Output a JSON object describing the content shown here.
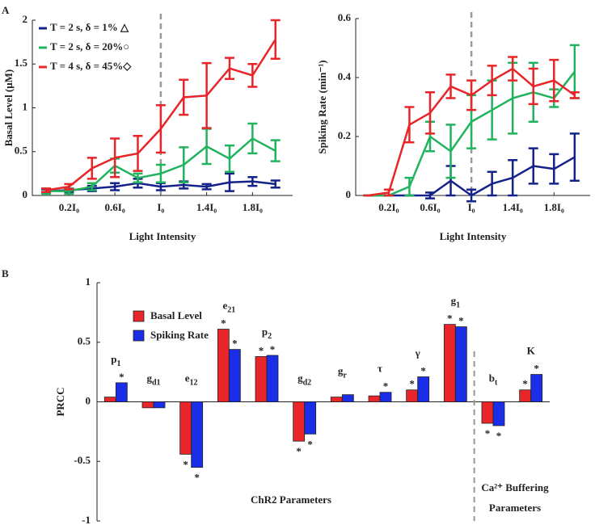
{
  "chart_data": [
    {
      "type": "line",
      "label": "A",
      "x_label": "Light Intensity",
      "y_label": "Basal Level (μM)",
      "x": [
        0,
        0.2,
        0.4,
        0.6,
        0.8,
        1.0,
        1.2,
        1.4,
        1.6,
        1.8,
        2.0
      ],
      "xlim": [
        -0.12,
        2.15
      ],
      "ylim": [
        0,
        2
      ],
      "xticks": [
        {
          "value": 0.2,
          "label": "0.2I₀"
        },
        {
          "value": 0.6,
          "label": "0.6I₀"
        },
        {
          "value": 1,
          "label": "I₀"
        },
        {
          "value": 1.4,
          "label": "1.4I₀"
        },
        {
          "value": 1.8,
          "label": "1.8I₀"
        }
      ],
      "yticks": [
        0,
        0.5,
        1,
        1.5,
        2
      ],
      "reference_x": 1,
      "series": [
        {
          "name": "T = 2 s, δ = 1% △",
          "color": "#14238a",
          "values": [
            0.05,
            0.06,
            0.08,
            0.1,
            0.14,
            0.1,
            0.12,
            0.1,
            0.15,
            0.16,
            0.13
          ],
          "errors": [
            0.02,
            0.02,
            0.03,
            0.04,
            0.05,
            0.04,
            0.04,
            0.03,
            0.1,
            0.05,
            0.04
          ]
        },
        {
          "name": "T = 2 s, δ = 20%○",
          "color": "#22b35e",
          "values": [
            0.05,
            0.05,
            0.1,
            0.34,
            0.2,
            0.25,
            0.35,
            0.56,
            0.42,
            0.65,
            0.51
          ],
          "errors": [
            0.03,
            0.03,
            0.04,
            0.08,
            0.05,
            0.1,
            0.2,
            0.2,
            0.15,
            0.17,
            0.12
          ]
        },
        {
          "name": "T = 4 s, δ = 45%◇",
          "color": "#e8262a",
          "values": [
            0.06,
            0.1,
            0.31,
            0.43,
            0.48,
            0.76,
            1.12,
            1.14,
            1.45,
            1.37,
            1.78
          ],
          "errors": [
            0.02,
            0.03,
            0.12,
            0.22,
            0.2,
            0.27,
            0.2,
            0.37,
            0.12,
            0.13,
            0.22
          ]
        }
      ]
    },
    {
      "type": "line",
      "x_label": "Light Intensity",
      "y_label": "Spiking Rate (min⁻¹)",
      "x": [
        0,
        0.2,
        0.4,
        0.6,
        0.8,
        1.0,
        1.2,
        1.4,
        1.6,
        1.8,
        2.0
      ],
      "xlim": [
        -0.12,
        2.15
      ],
      "ylim": [
        0,
        0.6
      ],
      "xticks": [
        {
          "value": 0.2,
          "label": "0.2I₀"
        },
        {
          "value": 0.6,
          "label": "0.6I₀"
        },
        {
          "value": 1,
          "label": "I₀"
        },
        {
          "value": 1.4,
          "label": "1.4I₀"
        },
        {
          "value": 1.8,
          "label": "1.8I₀"
        }
      ],
      "yticks": [
        0,
        0.2,
        0.4,
        0.6
      ],
      "reference_x": 1,
      "series": [
        {
          "color": "#14238a",
          "values": [
            0,
            0,
            0,
            0,
            0.05,
            0.0,
            0.04,
            0.06,
            0.1,
            0.09,
            0.13
          ],
          "errors": [
            0,
            0,
            0,
            0.01,
            0.05,
            0.02,
            0.04,
            0.06,
            0.06,
            0.05,
            0.08
          ]
        },
        {
          "color": "#22b35e",
          "values": [
            0,
            0,
            0.03,
            0.2,
            0.15,
            0.25,
            0.29,
            0.33,
            0.35,
            0.33,
            0.42
          ],
          "errors": [
            0,
            0,
            0.03,
            0.05,
            0.09,
            0.09,
            0.1,
            0.12,
            0.1,
            0.03,
            0.09
          ]
        },
        {
          "color": "#e8262a",
          "values": [
            0,
            0.01,
            0.24,
            0.28,
            0.37,
            0.34,
            0.39,
            0.43,
            0.37,
            0.39,
            0.34
          ],
          "errors": [
            0,
            0.01,
            0.06,
            0.07,
            0.04,
            0.05,
            0.05,
            0.04,
            0.06,
            0.07,
            0.01
          ]
        }
      ]
    },
    {
      "type": "bar",
      "label": "B",
      "y_label": "PRCC",
      "categories": [
        "p1",
        "gd1",
        "e12",
        "e21",
        "p2",
        "gd2",
        "gr",
        "τ",
        "γ",
        "g1",
        "bt",
        "K"
      ],
      "ylim": [
        -1,
        1
      ],
      "yticks": [
        -1,
        -0.5,
        0,
        0.5,
        1
      ],
      "series": [
        {
          "name": "Basal Level",
          "color": "#e8262a",
          "values": [
            0.04,
            -0.05,
            -0.44,
            0.61,
            0.38,
            -0.33,
            0.04,
            0.05,
            0.1,
            0.65,
            -0.18,
            0.1
          ],
          "significance": [
            null,
            null,
            "*",
            "*",
            "*",
            "*",
            null,
            null,
            "*",
            "*",
            "*",
            "*"
          ]
        },
        {
          "name": "Spiking Rate",
          "color": "#1a2ee8",
          "values": [
            0.16,
            -0.05,
            -0.55,
            0.44,
            0.39,
            -0.27,
            0.06,
            0.08,
            0.21,
            0.63,
            -0.2,
            0.23
          ],
          "significance": [
            "*",
            null,
            "*",
            "*",
            "*",
            "*",
            null,
            "*",
            "*",
            "*",
            "*",
            "*"
          ]
        }
      ],
      "annotations": [
        "ChR2 Parameters",
        "Ca²⁺ Buffering",
        "Parameters"
      ]
    }
  ]
}
